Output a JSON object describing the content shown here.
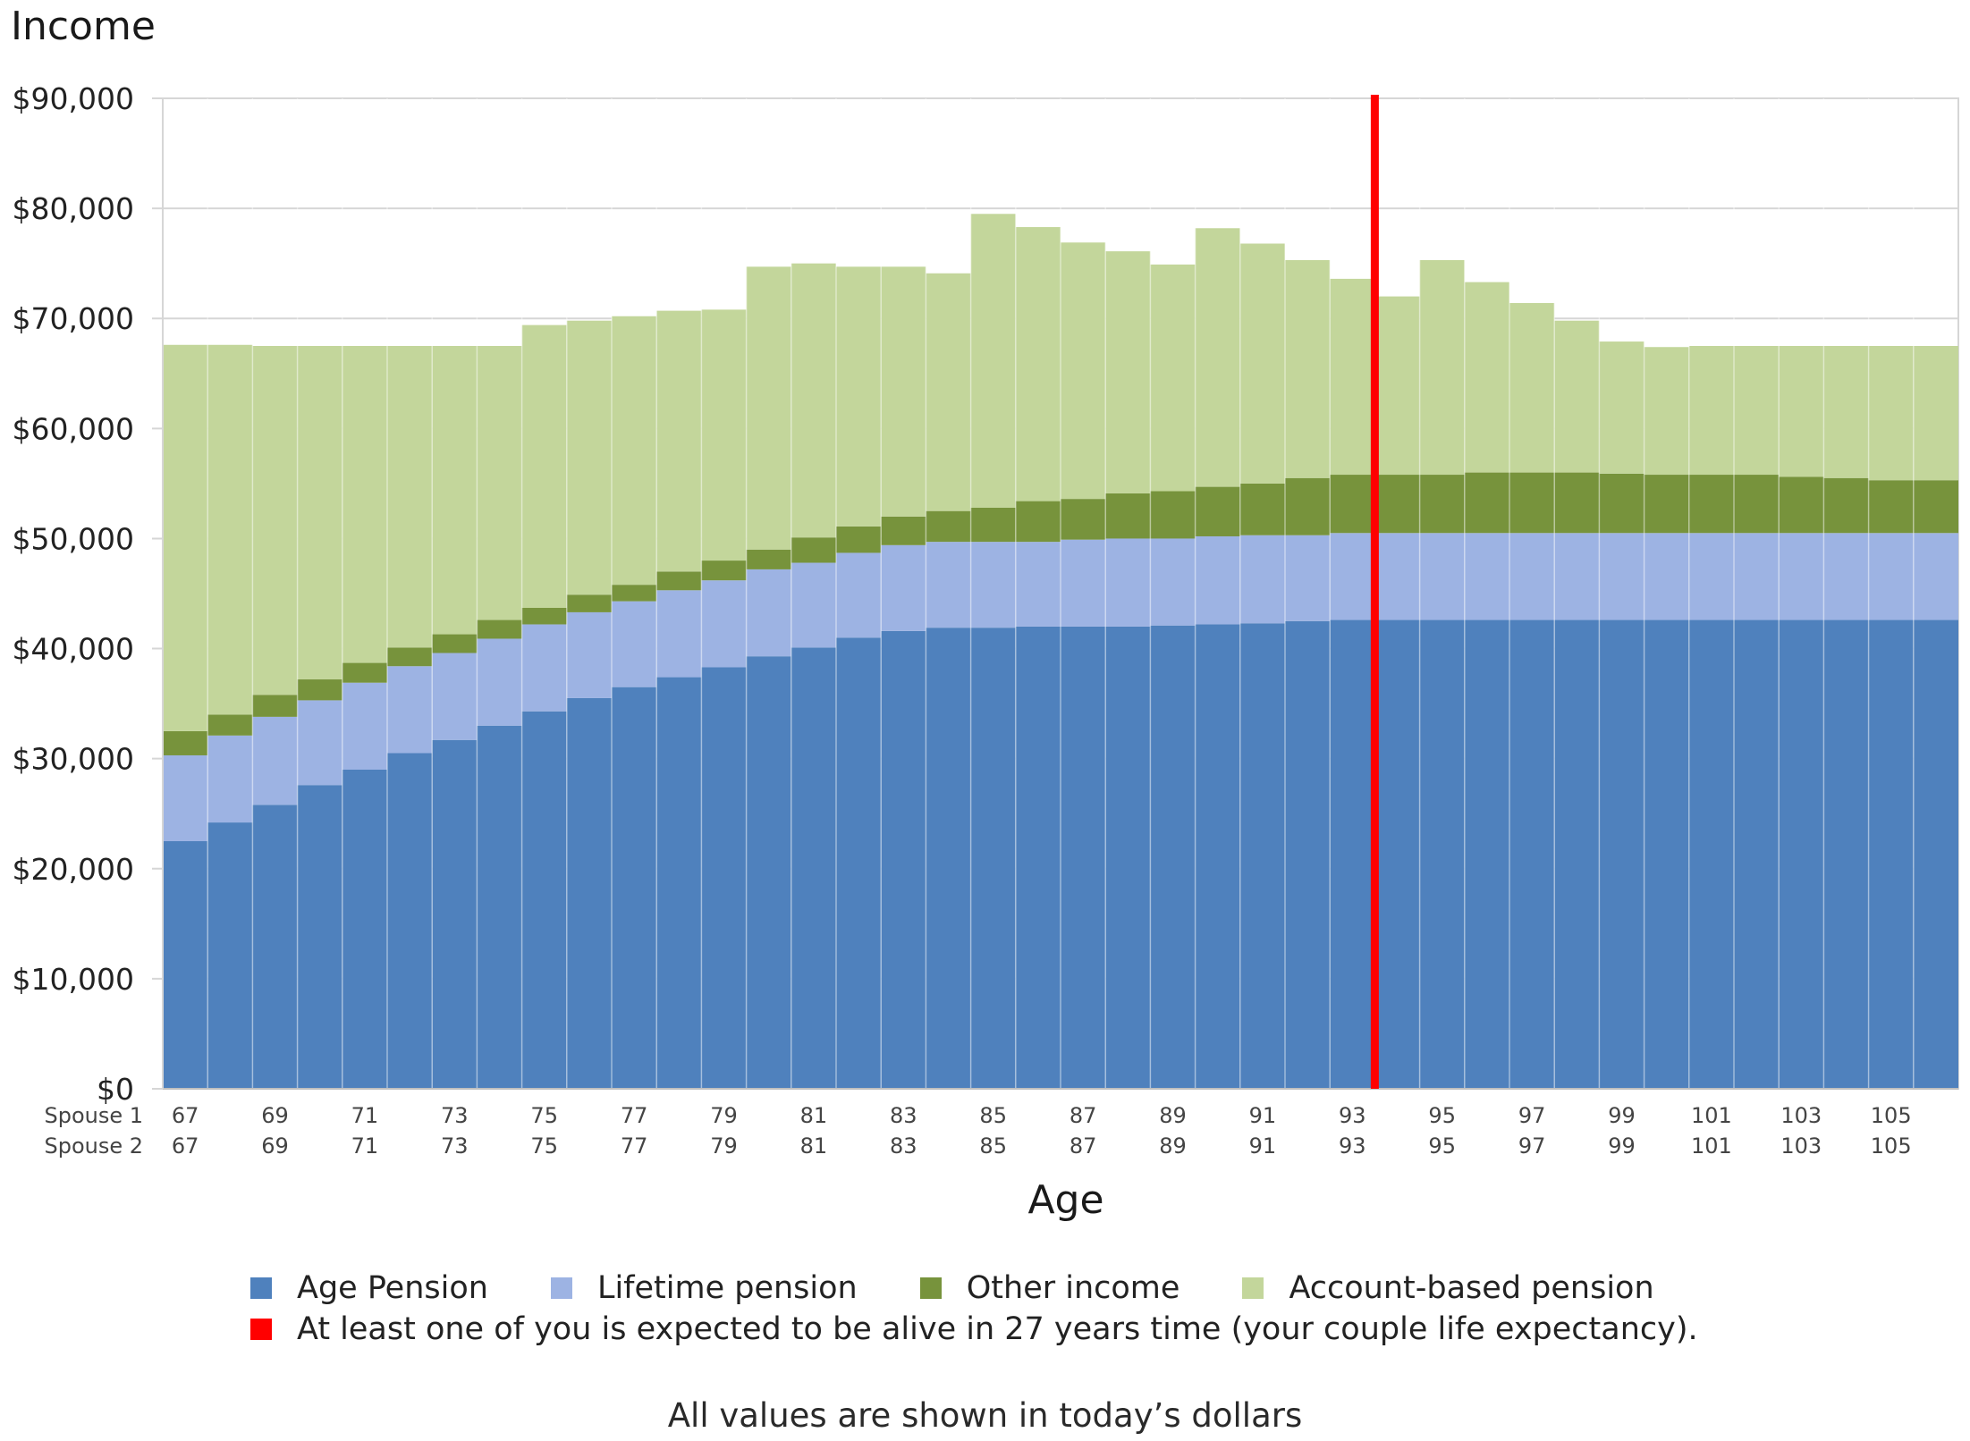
{
  "chart_data": {
    "type": "bar",
    "stacked": true,
    "title": "Income",
    "xlabel": "Age",
    "ylabel": "Income",
    "ylim": [
      0,
      90000
    ],
    "y_ticks": [
      0,
      10000,
      20000,
      30000,
      40000,
      50000,
      60000,
      70000,
      80000,
      90000
    ],
    "y_tick_labels": [
      "$0",
      "$10,000",
      "$20,000",
      "$30,000",
      "$40,000",
      "$50,000",
      "$60,000",
      "$70,000",
      "$80,000",
      "$90,000"
    ],
    "grid": true,
    "categories": [
      67,
      68,
      69,
      70,
      71,
      72,
      73,
      74,
      75,
      76,
      77,
      78,
      79,
      80,
      81,
      82,
      83,
      84,
      85,
      86,
      87,
      88,
      89,
      90,
      91,
      92,
      93,
      94,
      95,
      96,
      97,
      98,
      99,
      100,
      101,
      102,
      103,
      104,
      105,
      106
    ],
    "x_tick_rows": [
      {
        "label": "Spouse 1",
        "ticks": [
          "67",
          "69",
          "71",
          "73",
          "75",
          "77",
          "79",
          "81",
          "83",
          "85",
          "87",
          "89",
          "91",
          "93",
          "95",
          "97",
          "99",
          "101",
          "103",
          "105"
        ]
      },
      {
        "label": "Spouse 2",
        "ticks": [
          "67",
          "69",
          "71",
          "73",
          "75",
          "77",
          "79",
          "81",
          "83",
          "85",
          "87",
          "89",
          "91",
          "93",
          "95",
          "97",
          "99",
          "101",
          "103",
          "105"
        ]
      }
    ],
    "series": [
      {
        "name": "Age Pension",
        "color": "#4f81bd",
        "values": [
          22500,
          24200,
          25800,
          27600,
          29000,
          30500,
          31700,
          33000,
          34300,
          35500,
          36500,
          37400,
          38300,
          39300,
          40100,
          41000,
          41600,
          41900,
          41900,
          42000,
          42000,
          42000,
          42100,
          42200,
          42300,
          42500,
          42600,
          42600,
          42600,
          42600,
          42600,
          42600,
          42600,
          42600,
          42600,
          42600,
          42600,
          42600,
          42600,
          42600
        ]
      },
      {
        "name": "Lifetime pension",
        "color": "#9db3e3",
        "values": [
          7800,
          7900,
          8000,
          7700,
          7900,
          7900,
          7900,
          7900,
          7900,
          7800,
          7800,
          7900,
          7900,
          7900,
          7700,
          7700,
          7800,
          7800,
          7800,
          7700,
          7900,
          8000,
          7900,
          8000,
          8000,
          7800,
          7900,
          7900,
          7900,
          7900,
          7900,
          7900,
          7900,
          7900,
          7900,
          7900,
          7900,
          7900,
          7900,
          7900
        ]
      },
      {
        "name": "Other income",
        "color": "#77933c",
        "values": [
          2200,
          1900,
          2000,
          1900,
          1800,
          1700,
          1700,
          1700,
          1500,
          1600,
          1500,
          1700,
          1800,
          1800,
          2300,
          2400,
          2600,
          2800,
          3100,
          3700,
          3700,
          4100,
          4300,
          4500,
          4700,
          5200,
          5300,
          5300,
          5300,
          5500,
          5500,
          5500,
          5400,
          5300,
          5300,
          5300,
          5100,
          5000,
          4800,
          4800
        ]
      },
      {
        "name": "Account-based pension",
        "color": "#c3d69b",
        "values": [
          35100,
          33600,
          31700,
          30300,
          28800,
          27400,
          26200,
          24900,
          25700,
          24900,
          24400,
          23700,
          22800,
          25700,
          24900,
          23600,
          22700,
          21600,
          26700,
          24900,
          23300,
          22000,
          20600,
          23500,
          21800,
          19800,
          17800,
          16200,
          19500,
          17300,
          15400,
          13800,
          12000,
          11600,
          11700,
          11700,
          11900,
          12000,
          12200,
          12200
        ]
      }
    ],
    "marker": {
      "category": 94,
      "color": "#ff0000",
      "label": "At least one of you is expected to be alive in 27 years time (your couple life expectancy)."
    },
    "legend_position": "bottom",
    "footnote": "All values are shown in today’s dollars"
  }
}
